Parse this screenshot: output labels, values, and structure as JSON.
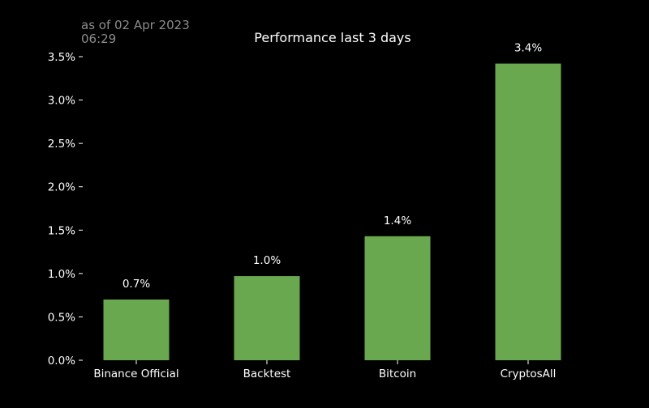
{
  "timestamp": {
    "line1": "as of 02 Apr 2023",
    "line2": "06:29"
  },
  "chart_data": {
    "type": "bar",
    "title": "Performance last 3 days",
    "xlabel": "",
    "ylabel": "",
    "categories": [
      "Binance Official",
      "Backtest",
      "Bitcoin",
      "CryptosAll"
    ],
    "values": [
      0.7,
      0.97,
      1.43,
      3.42
    ],
    "data_labels": [
      "0.7%",
      "1.0%",
      "1.4%",
      "3.4%"
    ],
    "ylim": [
      0,
      3.5
    ],
    "yticks": [
      0.0,
      0.5,
      1.0,
      1.5,
      2.0,
      2.5,
      3.0,
      3.5
    ],
    "ytick_labels": [
      "0.0%",
      "0.5%",
      "1.0%",
      "1.5%",
      "2.0%",
      "2.5%",
      "3.0%",
      "3.5%"
    ],
    "grid": false,
    "colors": {
      "background": "#000000",
      "bar": "#6aa84f",
      "text": "#ffffff",
      "timestamp": "#8c8c8c"
    }
  }
}
